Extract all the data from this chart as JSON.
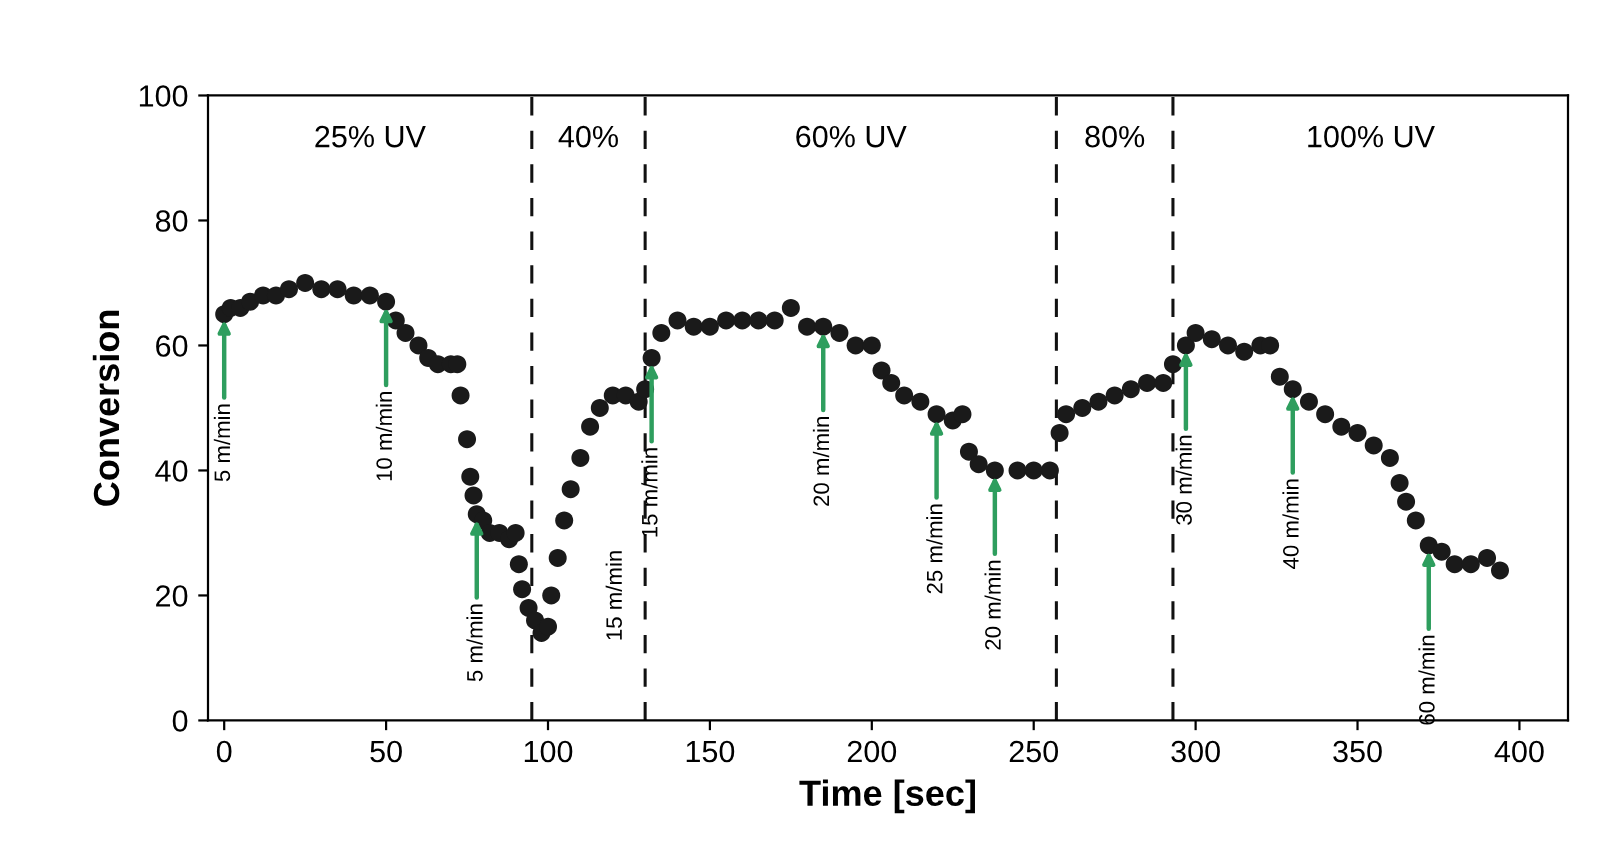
{
  "chart_data": {
    "type": "scatter",
    "xlabel": "Time [sec]",
    "ylabel": "Conversion",
    "xlim": [
      -5,
      415
    ],
    "ylim": [
      0,
      100
    ],
    "xticks": [
      0,
      50,
      100,
      150,
      200,
      250,
      300,
      350,
      400
    ],
    "yticks": [
      0,
      20,
      40,
      60,
      80,
      100
    ],
    "marker": "circle",
    "grid": false,
    "series": [
      {
        "color": "#1a1a1a",
        "x": [
          0,
          2,
          5,
          8,
          12,
          16,
          20,
          25,
          30,
          35,
          40,
          45,
          50,
          53,
          56,
          60,
          63,
          66,
          70,
          72,
          73,
          75,
          76,
          77,
          78,
          80,
          82,
          85,
          88,
          90,
          91,
          92,
          94,
          96,
          98,
          100,
          101,
          103,
          105,
          107,
          110,
          113,
          116,
          120,
          124,
          128,
          130,
          132,
          135,
          140,
          145,
          150,
          155,
          160,
          165,
          170,
          175,
          180,
          185,
          190,
          195,
          200,
          203,
          206,
          210,
          215,
          220,
          225,
          228,
          230,
          233,
          238,
          245,
          250,
          255,
          258,
          260,
          265,
          270,
          275,
          280,
          285,
          290,
          293,
          297,
          300,
          305,
          310,
          315,
          320,
          323,
          326,
          330,
          335,
          340,
          345,
          350,
          355,
          360,
          363,
          365,
          368,
          372,
          376,
          380,
          385,
          390,
          394
        ],
        "values": [
          65,
          66,
          66,
          67,
          68,
          68,
          69,
          70,
          69,
          69,
          68,
          68,
          67,
          64,
          62,
          60,
          58,
          57,
          57,
          57,
          52,
          45,
          39,
          36,
          33,
          32,
          30,
          30,
          29,
          30,
          25,
          21,
          18,
          16,
          14,
          15,
          20,
          26,
          32,
          37,
          42,
          47,
          50,
          52,
          52,
          51,
          53,
          58,
          62,
          64,
          63,
          63,
          64,
          64,
          64,
          64,
          66,
          63,
          63,
          62,
          60,
          60,
          56,
          54,
          52,
          51,
          49,
          48,
          49,
          43,
          41,
          40,
          40,
          40,
          40,
          46,
          49,
          50,
          51,
          52,
          53,
          54,
          54,
          57,
          60,
          62,
          61,
          60,
          59,
          60,
          60,
          55,
          53,
          51,
          49,
          47,
          46,
          44,
          42,
          38,
          35,
          32,
          28,
          27,
          25,
          25,
          26,
          24
        ]
      }
    ],
    "ref_lines": [
      {
        "axis": "x",
        "value": 95,
        "line_style": "dashed"
      },
      {
        "axis": "x",
        "value": 130,
        "line_style": "dashed"
      },
      {
        "axis": "x",
        "value": 257,
        "line_style": "dashed"
      },
      {
        "axis": "x",
        "value": 293,
        "line_style": "dashed"
      }
    ],
    "annotations": [
      "25% UV",
      "40%",
      "60% UV",
      "80%",
      "100% UV",
      {
        "text": "5 m/min",
        "x": 0,
        "y": 65
      },
      {
        "text": "10 m/min",
        "x": 50,
        "y": 67
      },
      {
        "text": "5 m/min",
        "x": 78,
        "y": 33
      },
      {
        "text": "15 m/min",
        "x": 132,
        "y": 58
      },
      {
        "text": "20 m/min",
        "x": 185,
        "y": 63
      },
      {
        "text": "25 m/min",
        "x": 220,
        "y": 49
      },
      {
        "text": "20 m/min",
        "x": 238,
        "y": 40
      },
      {
        "text": "30 m/min",
        "x": 297,
        "y": 60
      },
      {
        "text": "40 m/min",
        "x": 330,
        "y": 53
      },
      {
        "text": "60 m/min",
        "x": 372,
        "y": 28
      },
      "15 m/min"
    ]
  }
}
